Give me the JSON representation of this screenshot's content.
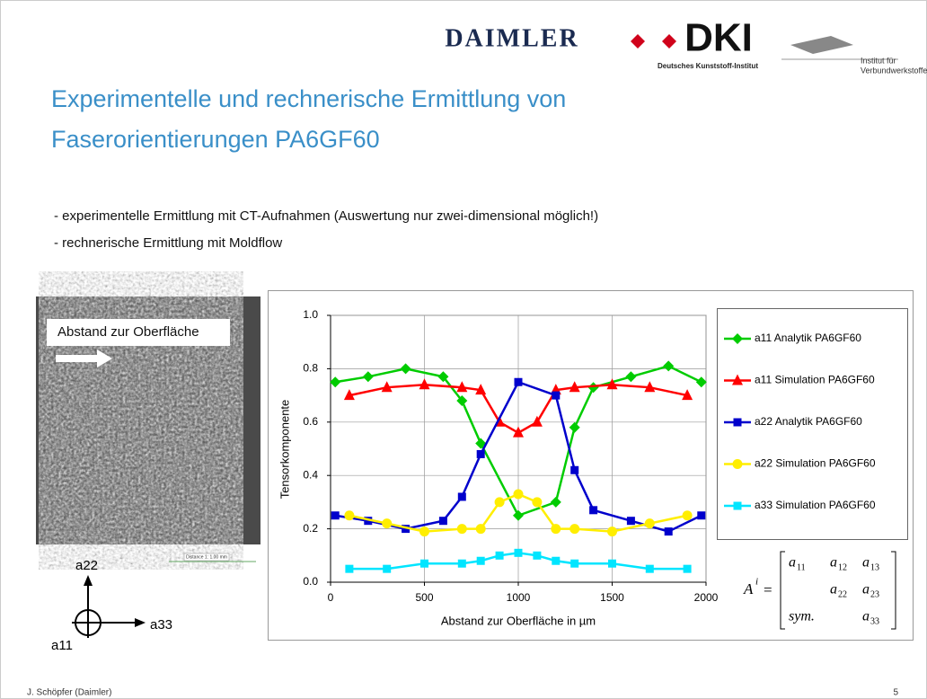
{
  "header": {
    "logo_daimler": "DAIMLER",
    "logo_dki": "DKI",
    "logo_dki_sub": "Deutsches Kunststoff-Institut",
    "logo_ivw": [
      "Institut für",
      "Verbundwerkstoffe"
    ]
  },
  "title": [
    "Experimentelle und rechnerische Ermittlung von",
    "Faserorientierungen PA6GF60"
  ],
  "bullets": [
    "- experimentelle Ermittlung mit CT-Aufnahmen (Auswertung nur zwei-dimensional möglich!)",
    "- rechnerische Ermittlung mit Moldflow"
  ],
  "image": {
    "label": "Abstand zur Oberfläche",
    "scale": "Distance 1: 1.00 mm"
  },
  "axes_diagram": {
    "up": "a22",
    "right": "a33",
    "out": "a11"
  },
  "matrix": {
    "lhs": "A",
    "lhs_sup": "i",
    "rows": [
      [
        {
          "base": "a",
          "sub": "11"
        },
        {
          "base": "a",
          "sub": "12"
        },
        {
          "base": "a",
          "sub": "13"
        }
      ],
      [
        {
          "base": "a",
          "sub": "22"
        },
        {
          "base": "a",
          "sub": "23"
        }
      ],
      [
        {
          "base": "sym."
        },
        {
          "base": "a",
          "sub": "33"
        }
      ]
    ]
  },
  "footer": {
    "author": "J. Schöpfer (Daimler)",
    "page": "5"
  },
  "chart_data": {
    "type": "line",
    "x_label": "Abstand zur Oberfläche in µm",
    "y_label": "Tensorkomponente",
    "xlim": [
      0,
      2000
    ],
    "xticks": [
      0,
      500,
      1000,
      1500,
      2000
    ],
    "ylim": [
      0,
      1
    ],
    "yticks": [
      {
        "value": 0,
        "label": "0.0"
      },
      0.2,
      0.4,
      0.6,
      0.8,
      {
        "value": 1,
        "label": "1.0"
      }
    ],
    "grid": true,
    "series": [
      {
        "name": "a11 Analytik PA6GF60",
        "color": "#00cc00",
        "marker": "diamond",
        "x": [
          25,
          200,
          400,
          600,
          700,
          800,
          1000,
          1200,
          1300,
          1400,
          1600,
          1800,
          1975
        ],
        "values": [
          0.75,
          0.77,
          0.8,
          0.77,
          0.68,
          0.52,
          0.25,
          0.3,
          0.58,
          0.73,
          0.77,
          0.81,
          0.75
        ]
      },
      {
        "name": "a11 Simulation PA6GF60",
        "color": "#ff0000",
        "marker": "triangle",
        "x": [
          100,
          300,
          500,
          700,
          800,
          900,
          1000,
          1100,
          1200,
          1300,
          1500,
          1700,
          1900
        ],
        "values": [
          0.7,
          0.73,
          0.74,
          0.73,
          0.72,
          0.6,
          0.56,
          0.6,
          0.72,
          0.73,
          0.74,
          0.73,
          0.7
        ]
      },
      {
        "name": "a22 Analytik PA6GF60",
        "color": "#0000cc",
        "marker": "square",
        "x": [
          25,
          200,
          400,
          600,
          700,
          800,
          1000,
          1200,
          1300,
          1400,
          1600,
          1800,
          1975
        ],
        "values": [
          0.25,
          0.23,
          0.2,
          0.23,
          0.32,
          0.48,
          0.75,
          0.7,
          0.42,
          0.27,
          0.23,
          0.19,
          0.25
        ]
      },
      {
        "name": "a22  Simulation PA6GF60",
        "color": "#ffee00",
        "marker": "circle",
        "x": [
          100,
          300,
          500,
          700,
          800,
          900,
          1000,
          1100,
          1200,
          1300,
          1500,
          1700,
          1900
        ],
        "values": [
          0.25,
          0.22,
          0.19,
          0.2,
          0.2,
          0.3,
          0.33,
          0.3,
          0.2,
          0.2,
          0.19,
          0.22,
          0.25
        ]
      },
      {
        "name": "a33  Simulation PA6GF60",
        "color": "#00e5ff",
        "marker": "square",
        "x": [
          100,
          300,
          500,
          700,
          800,
          900,
          1000,
          1100,
          1200,
          1300,
          1500,
          1700,
          1900
        ],
        "values": [
          0.05,
          0.05,
          0.07,
          0.07,
          0.08,
          0.1,
          0.11,
          0.1,
          0.08,
          0.07,
          0.07,
          0.05,
          0.05
        ]
      }
    ]
  }
}
